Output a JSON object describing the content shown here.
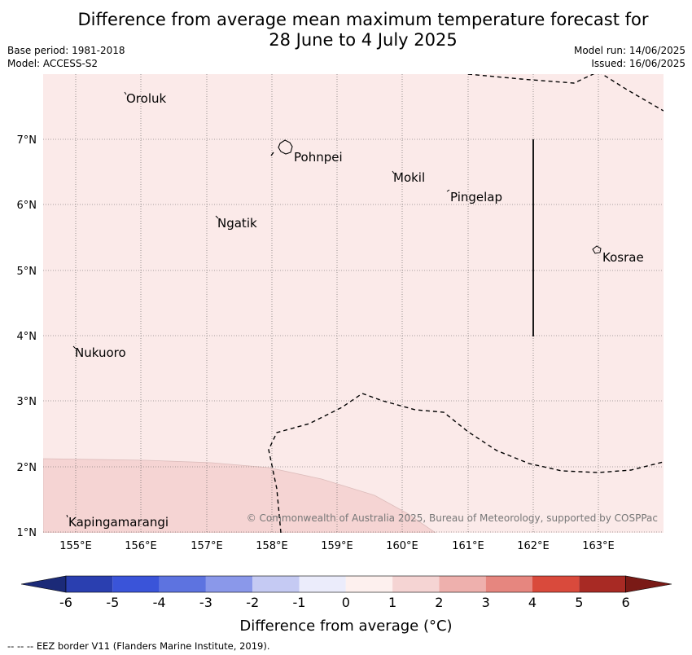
{
  "title": {
    "line1": "Difference from average mean maximum temperature forecast for",
    "line2": "28 June to 4 July 2025"
  },
  "meta": {
    "base_period": "Base period: 1981-2018",
    "model": "Model: ACCESS-S2",
    "model_run": "Model run: 14/06/2025",
    "issued": "Issued: 16/06/2025"
  },
  "map": {
    "background_color": "#fbeae9",
    "anomaly_1_2_color": "#f5d4d3",
    "lat_labels": [
      "7°N",
      "6°N",
      "5°N",
      "4°N",
      "3°N",
      "2°N",
      "1°N"
    ],
    "lon_labels": [
      "155°E",
      "156°E",
      "157°E",
      "158°E",
      "159°E",
      "160°E",
      "161°E",
      "162°E",
      "163°E"
    ],
    "places": [
      "Oroluk",
      "Pohnpei",
      "Mokil",
      "Pingelap",
      "Ngatik",
      "Kosrae",
      "Nukuoro",
      "Kapingamarangi"
    ],
    "copyright": "© Commonwealth of Australia 2025, Bureau of Meteorology, supported by COSPPac"
  },
  "colorbar": {
    "ticks": [
      "-6",
      "-5",
      "-4",
      "-3",
      "-2",
      "-1",
      "0",
      "1",
      "2",
      "3",
      "4",
      "5",
      "6"
    ],
    "colors": [
      "#1b2a78",
      "#2a3fb0",
      "#3a54d9",
      "#5d73e0",
      "#8a98ea",
      "#c5caf3",
      "#ebecfb",
      "#fdf0ee",
      "#f5d4d3",
      "#eeb0ad",
      "#e6867f",
      "#d94a3c",
      "#a82a24",
      "#7a1a16"
    ],
    "label": "Difference from average (°C)"
  },
  "footnote": "--  --  -- EEZ border V11 (Flanders Marine Institute, 2019)."
}
